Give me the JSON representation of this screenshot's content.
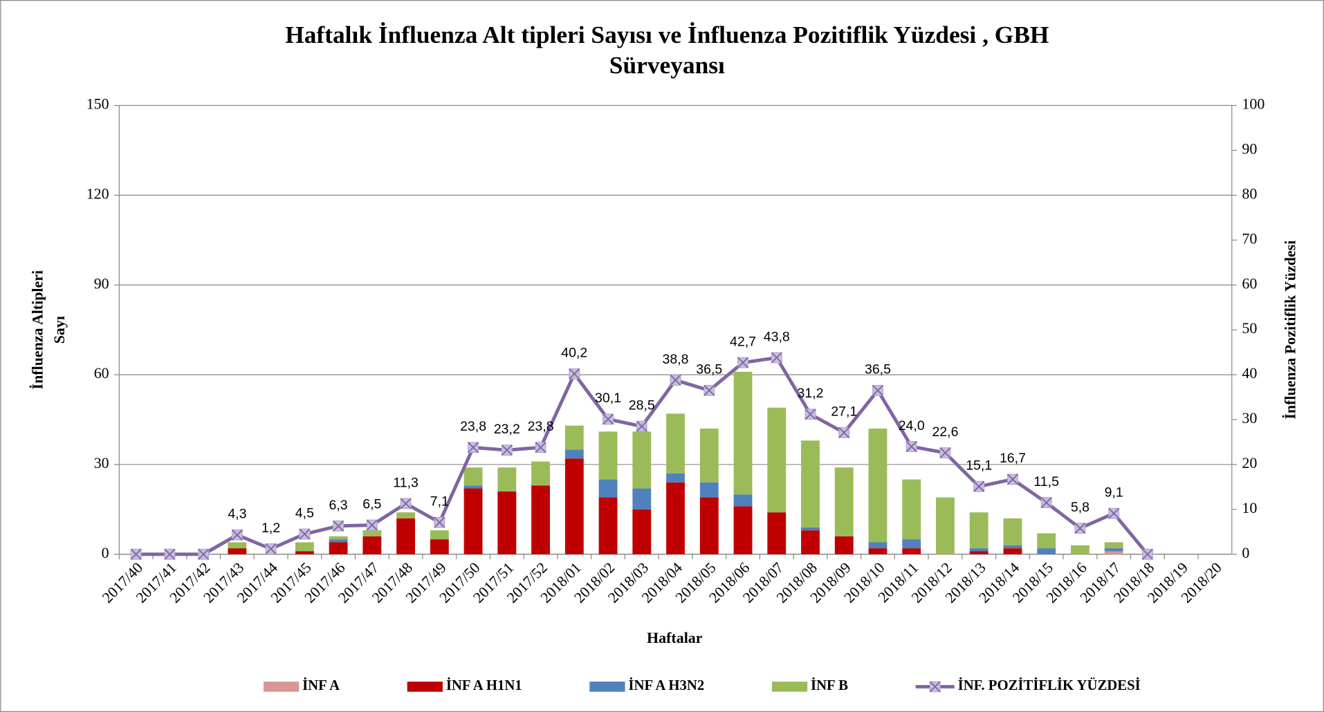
{
  "chart_data": {
    "type": "bar_line",
    "title": [
      "Haftalık İnfluenza Alt tipleri Sayısı ve İnfluenza Pozitiflik Yüzdesi , GBH",
      "Sürveyansı"
    ],
    "xlabel": "Haftalar",
    "ylabel": [
      "İnfluenza Altipleri",
      "Sayı"
    ],
    "y2label": "İnfluenza Pozitiflik Yüzdesi",
    "categories": [
      "2017/40",
      "2017/41",
      "2017/42",
      "2017/43",
      "2017/44",
      "2017/45",
      "2017/46",
      "2017/47",
      "2017/48",
      "2017/49",
      "2017/50",
      "2017/51",
      "2017/52",
      "2018/01",
      "2018/02",
      "2018/03",
      "2018/04",
      "2018/05",
      "2018/06",
      "2018/07",
      "2018/08",
      "2018/09",
      "2018/10",
      "2018/11",
      "2018/12",
      "2018/13",
      "2018/14",
      "2018/15",
      "2018/16",
      "2018/17",
      "2018/18",
      "2018/19",
      "2018/20"
    ],
    "ylim": [
      0,
      150
    ],
    "yticks": [
      0,
      30,
      60,
      90,
      120,
      150
    ],
    "y2lim": [
      0,
      100
    ],
    "y2ticks": [
      0,
      10,
      20,
      30,
      40,
      50,
      60,
      70,
      80,
      90,
      100
    ],
    "grid": true,
    "legend": "bottom",
    "series": [
      {
        "name": "İNF A",
        "color": "#d99694",
        "stack": true,
        "values": [
          0,
          0,
          0,
          0,
          0,
          0,
          0,
          0,
          0,
          0,
          0,
          0,
          0,
          0,
          0,
          0,
          0,
          0,
          0,
          0,
          0,
          0,
          0,
          0,
          0,
          0,
          0,
          0,
          0,
          1,
          0,
          0,
          0
        ]
      },
      {
        "name": "İNF A H1N1",
        "color": "#c00000",
        "stack": true,
        "values": [
          0,
          0,
          0,
          2,
          0,
          1,
          4,
          6,
          12,
          5,
          22,
          21,
          23,
          32,
          19,
          15,
          24,
          19,
          16,
          14,
          8,
          6,
          2,
          2,
          0,
          1,
          2,
          0,
          0,
          0,
          0,
          0,
          0
        ]
      },
      {
        "name": "İNF A H3N2",
        "color": "#4f81bd",
        "stack": true,
        "values": [
          0,
          0,
          0,
          0,
          0,
          0,
          1,
          0,
          0,
          0,
          1,
          0,
          0,
          3,
          6,
          7,
          3,
          5,
          4,
          0,
          1,
          0,
          2,
          3,
          0,
          1,
          1,
          2,
          0,
          1,
          0,
          0,
          0
        ]
      },
      {
        "name": "İNF B",
        "color": "#9bbb59",
        "stack": true,
        "values": [
          0,
          0,
          0,
          2,
          0,
          3,
          1,
          2,
          2,
          3,
          6,
          8,
          8,
          8,
          16,
          19,
          20,
          18,
          41,
          35,
          29,
          23,
          38,
          20,
          19,
          12,
          9,
          5,
          3,
          2,
          0,
          0,
          0
        ]
      },
      {
        "name": "İNF. POZİTİFLİK YÜZDESİ",
        "color": "#8064a2",
        "axis": "y2",
        "kind": "line",
        "values": [
          0,
          0,
          0,
          4.3,
          1.2,
          4.5,
          6.3,
          6.5,
          11.3,
          7.1,
          23.8,
          23.2,
          23.8,
          40.2,
          30.1,
          28.5,
          38.8,
          36.5,
          42.7,
          43.8,
          31.2,
          27.1,
          36.5,
          24.0,
          22.6,
          15.1,
          16.7,
          11.5,
          5.8,
          9.1,
          0,
          null,
          null
        ],
        "value_labels": [
          null,
          null,
          null,
          "4,3",
          "1,2",
          "4,5",
          "6,3",
          "6,5",
          "11,3",
          "7,1",
          "23,8",
          "23,2",
          "23,8",
          "40,2",
          "30,1",
          "28,5",
          "38,8",
          "36,5",
          "42,7",
          "43,8",
          "31,2",
          "27,1",
          "36,5",
          "24,0",
          "22,6",
          "15,1",
          "16,7",
          "11,5",
          "5,8",
          "9,1",
          null,
          null,
          null
        ]
      }
    ]
  }
}
